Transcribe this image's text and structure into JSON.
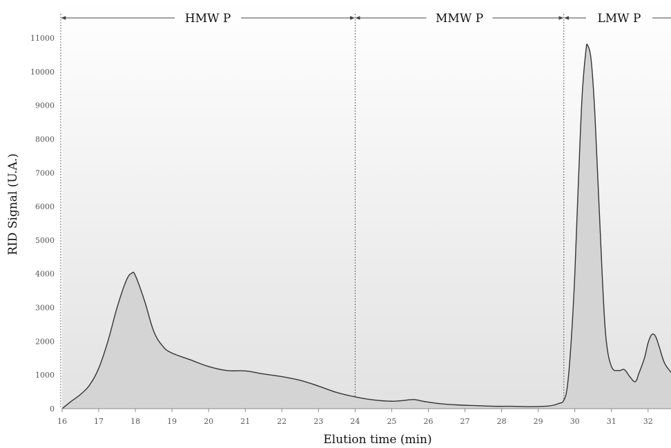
{
  "chart_data": {
    "type": "area",
    "title": "",
    "xlabel": "Elution time (min)",
    "ylabel": "RID Signal (U.A.)",
    "xlim": [
      16,
      32.65
    ],
    "ylim": [
      0,
      11000
    ],
    "xticks": [
      16,
      17,
      18,
      19,
      20,
      21,
      22,
      23,
      24,
      25,
      26,
      27,
      28,
      29,
      30,
      31,
      32
    ],
    "yticks": [
      0,
      1000,
      2000,
      3000,
      4000,
      5000,
      6000,
      7000,
      8000,
      9000,
      10000,
      11000
    ],
    "grid": false,
    "regions": [
      {
        "label": "HMW P",
        "start": 15.95,
        "end": 24.0
      },
      {
        "label": "MMW P",
        "start": 24.0,
        "end": 29.7
      },
      {
        "label": "LMW P",
        "start": 29.7,
        "end": 32.65
      }
    ],
    "series": [
      {
        "x": [
          16.0,
          16.25,
          16.5,
          16.75,
          17.0,
          17.25,
          17.5,
          17.75,
          17.9,
          18.0,
          18.25,
          18.5,
          18.75,
          19.0,
          19.5,
          20.0,
          20.5,
          21.0,
          21.5,
          22.0,
          22.5,
          23.0,
          23.5,
          24.0,
          24.5,
          25.0,
          25.3,
          25.6,
          25.9,
          26.3,
          26.8,
          27.3,
          27.8,
          28.3,
          28.8,
          29.3,
          29.55,
          29.7,
          29.8,
          29.9,
          30.0,
          30.1,
          30.2,
          30.3,
          30.35,
          30.45,
          30.55,
          30.65,
          30.75,
          30.85,
          31.0,
          31.2,
          31.35,
          31.5,
          31.65,
          31.75,
          31.9,
          32.0,
          32.1,
          32.2,
          32.3,
          32.45,
          32.65
        ],
        "y": [
          0,
          220,
          420,
          700,
          1200,
          2000,
          3000,
          3800,
          4020,
          3950,
          3200,
          2300,
          1850,
          1650,
          1450,
          1250,
          1130,
          1120,
          1030,
          950,
          840,
          670,
          480,
          350,
          260,
          220,
          240,
          270,
          210,
          150,
          110,
          90,
          70,
          70,
          60,
          80,
          150,
          250,
          700,
          2000,
          4000,
          6800,
          9300,
          10600,
          10780,
          10300,
          8700,
          6300,
          3900,
          2100,
          1250,
          1130,
          1160,
          950,
          800,
          1050,
          1500,
          1950,
          2200,
          2150,
          1850,
          1350,
          1050
        ],
        "color": "#333333",
        "fill": "#d4d4d4"
      }
    ]
  }
}
